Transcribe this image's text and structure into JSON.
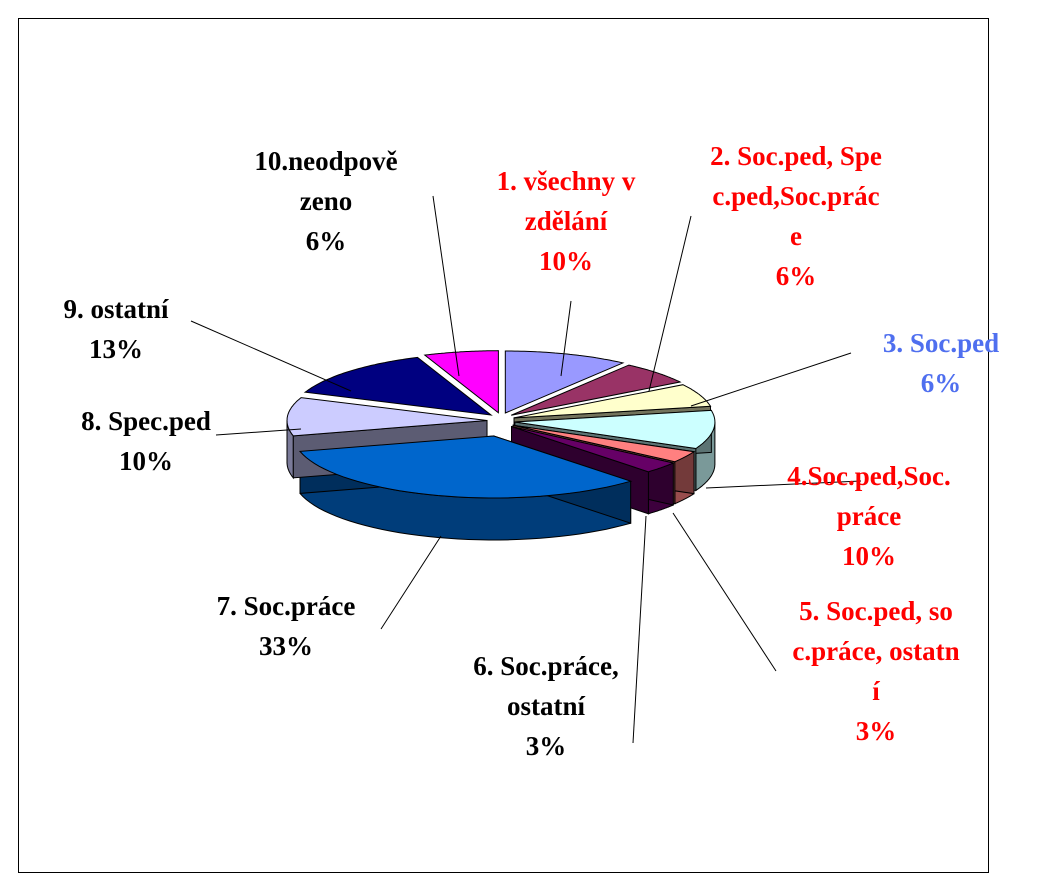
{
  "chart_data": {
    "type": "pie",
    "categories": [
      "1. všechny vzdělání",
      "2. Soc.ped, Spec.ped,Soc.práce",
      "3. Soc.ped",
      "4.Soc.ped,Soc.práce",
      "5. Soc.ped, soc.práce, ostatní",
      "6. Soc.práce, ostatní",
      "7. Soc.práce",
      "8. Spec.ped",
      "9. ostatní",
      "10.neodpovězeno"
    ],
    "values": [
      10,
      6,
      6,
      10,
      3,
      3,
      33,
      10,
      13,
      6
    ],
    "value_labels": [
      "10%",
      "6%",
      "6%",
      "10%",
      "3%",
      "3%",
      "33%",
      "10%",
      "13%",
      "6%"
    ],
    "colors": [
      "#9999ff",
      "#993366",
      "#ffffcc",
      "#ccffff",
      "#ff8080",
      "#660066",
      "#0066cc",
      "#ccccff",
      "#000080",
      "#ff00ff"
    ],
    "label_colors": [
      "#ff0000",
      "#ff0000",
      "#4f6fef",
      "#ff0000",
      "#ff0000",
      "#000000",
      "#000000",
      "#000000",
      "#000000",
      "#000000"
    ]
  }
}
